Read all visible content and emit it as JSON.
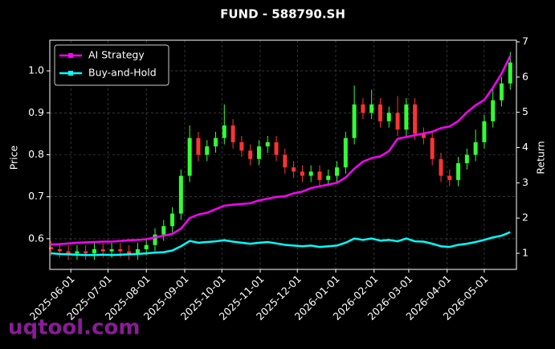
{
  "chart_data": {
    "type": "candlestick",
    "title": "FUND - 588790.SH",
    "ylabel": "Price",
    "y2label": "Return",
    "x": [
      "2025-05-16",
      "2025-05-23",
      "2025-05-30",
      "2025-06-06",
      "2025-06-13",
      "2025-06-20",
      "2025-06-27",
      "2025-07-04",
      "2025-07-11",
      "2025-07-18",
      "2025-07-25",
      "2025-08-01",
      "2025-08-08",
      "2025-08-15",
      "2025-08-22",
      "2025-08-29",
      "2025-09-05",
      "2025-09-12",
      "2025-09-19",
      "2025-09-26",
      "2025-10-03",
      "2025-10-10",
      "2025-10-17",
      "2025-10-24",
      "2025-10-31",
      "2025-11-07",
      "2025-11-14",
      "2025-11-21",
      "2025-11-28",
      "2025-12-05",
      "2025-12-12",
      "2025-12-19",
      "2025-12-26",
      "2026-01-02",
      "2026-01-09",
      "2026-01-16",
      "2026-01-23",
      "2026-01-30",
      "2026-02-06",
      "2026-02-13",
      "2026-02-20",
      "2026-02-27",
      "2026-03-06",
      "2026-03-13",
      "2026-03-20",
      "2026-03-27",
      "2026-04-03",
      "2026-04-10",
      "2026-04-17",
      "2026-04-24",
      "2026-05-01",
      "2026-05-08",
      "2026-05-15",
      "2026-05-22"
    ],
    "open": [
      0.58,
      0.575,
      0.57,
      0.565,
      0.57,
      0.565,
      0.575,
      0.57,
      0.575,
      0.57,
      0.565,
      0.575,
      0.585,
      0.61,
      0.63,
      0.66,
      0.75,
      0.84,
      0.8,
      0.82,
      0.84,
      0.87,
      0.83,
      0.81,
      0.79,
      0.82,
      0.83,
      0.8,
      0.77,
      0.76,
      0.75,
      0.76,
      0.74,
      0.75,
      0.77,
      0.84,
      0.92,
      0.9,
      0.92,
      0.88,
      0.9,
      0.86,
      0.92,
      0.85,
      0.84,
      0.79,
      0.75,
      0.74,
      0.78,
      0.8,
      0.83,
      0.88,
      0.93,
      0.97
    ],
    "high": [
      0.595,
      0.59,
      0.585,
      0.585,
      0.585,
      0.59,
      0.59,
      0.59,
      0.59,
      0.585,
      0.59,
      0.6,
      0.625,
      0.645,
      0.675,
      0.765,
      0.87,
      0.855,
      0.835,
      0.855,
      0.92,
      0.885,
      0.845,
      0.825,
      0.835,
      0.845,
      0.845,
      0.815,
      0.785,
      0.775,
      0.775,
      0.775,
      0.765,
      0.785,
      0.855,
      0.965,
      0.935,
      0.955,
      0.935,
      0.915,
      0.94,
      0.935,
      0.935,
      0.865,
      0.855,
      0.805,
      0.765,
      0.795,
      0.815,
      0.86,
      0.895,
      0.96,
      0.985,
      1.045
    ],
    "low": [
      0.56,
      0.555,
      0.55,
      0.55,
      0.55,
      0.55,
      0.555,
      0.555,
      0.555,
      0.55,
      0.55,
      0.56,
      0.57,
      0.595,
      0.615,
      0.645,
      0.735,
      0.785,
      0.785,
      0.805,
      0.825,
      0.815,
      0.795,
      0.775,
      0.775,
      0.805,
      0.785,
      0.755,
      0.745,
      0.735,
      0.735,
      0.725,
      0.725,
      0.735,
      0.755,
      0.825,
      0.885,
      0.885,
      0.865,
      0.865,
      0.845,
      0.845,
      0.835,
      0.825,
      0.775,
      0.735,
      0.725,
      0.725,
      0.765,
      0.785,
      0.815,
      0.865,
      0.915,
      0.955
    ],
    "close": [
      0.575,
      0.57,
      0.565,
      0.57,
      0.565,
      0.575,
      0.57,
      0.575,
      0.57,
      0.565,
      0.575,
      0.585,
      0.61,
      0.63,
      0.66,
      0.75,
      0.84,
      0.8,
      0.82,
      0.84,
      0.87,
      0.83,
      0.81,
      0.79,
      0.82,
      0.83,
      0.8,
      0.77,
      0.76,
      0.75,
      0.76,
      0.74,
      0.75,
      0.77,
      0.84,
      0.92,
      0.9,
      0.92,
      0.88,
      0.9,
      0.86,
      0.92,
      0.85,
      0.84,
      0.79,
      0.75,
      0.74,
      0.78,
      0.8,
      0.83,
      0.88,
      0.93,
      0.97,
      1.02
    ],
    "up_color": "#33ff33",
    "down_color": "#ff3333",
    "series": [
      {
        "name": "AI Strategy",
        "color": "#ff00ff",
        "axis": "y2",
        "values": [
          1.25,
          1.26,
          1.28,
          1.3,
          1.31,
          1.32,
          1.33,
          1.33,
          1.35,
          1.37,
          1.38,
          1.4,
          1.45,
          1.5,
          1.55,
          1.7,
          2.0,
          2.1,
          2.15,
          2.25,
          2.35,
          2.38,
          2.4,
          2.42,
          2.5,
          2.55,
          2.6,
          2.62,
          2.7,
          2.75,
          2.85,
          2.9,
          2.95,
          3.0,
          3.15,
          3.4,
          3.6,
          3.7,
          3.75,
          3.9,
          4.25,
          4.3,
          4.35,
          4.4,
          4.45,
          4.55,
          4.6,
          4.75,
          5.0,
          5.2,
          5.35,
          5.7,
          6.1,
          6.6
        ]
      },
      {
        "name": "Buy-and-Hold",
        "color": "#00ffff",
        "axis": "y2",
        "values": [
          1.0,
          0.98,
          0.97,
          0.96,
          0.95,
          0.95,
          0.96,
          0.95,
          0.96,
          0.97,
          0.98,
          1.0,
          1.02,
          1.03,
          1.08,
          1.2,
          1.35,
          1.3,
          1.32,
          1.34,
          1.37,
          1.33,
          1.3,
          1.27,
          1.3,
          1.32,
          1.28,
          1.24,
          1.22,
          1.2,
          1.22,
          1.18,
          1.2,
          1.22,
          1.3,
          1.42,
          1.38,
          1.42,
          1.36,
          1.38,
          1.34,
          1.42,
          1.34,
          1.33,
          1.27,
          1.2,
          1.18,
          1.24,
          1.27,
          1.32,
          1.38,
          1.45,
          1.5,
          1.6
        ]
      }
    ],
    "xlim": [
      "2025-05-15",
      "2026-05-27"
    ],
    "xticks": [
      "2025-06-01",
      "2025-07-01",
      "2025-08-01",
      "2025-09-01",
      "2025-10-01",
      "2025-11-01",
      "2025-12-01",
      "2026-01-01",
      "2026-02-01",
      "2026-03-01",
      "2026-04-01",
      "2026-05-01"
    ],
    "ylim": [
      0.527,
      1.073
    ],
    "yticks": [
      0.6,
      0.7,
      0.8,
      0.9,
      {
        "value": 1,
        "label": "1.0"
      }
    ],
    "y2lim": [
      0.543,
      7.046
    ],
    "y2ticks": [
      1,
      2,
      3,
      4,
      5,
      6,
      7
    ],
    "grid": true,
    "legend": "upper left",
    "watermark": "uqtool.com"
  }
}
